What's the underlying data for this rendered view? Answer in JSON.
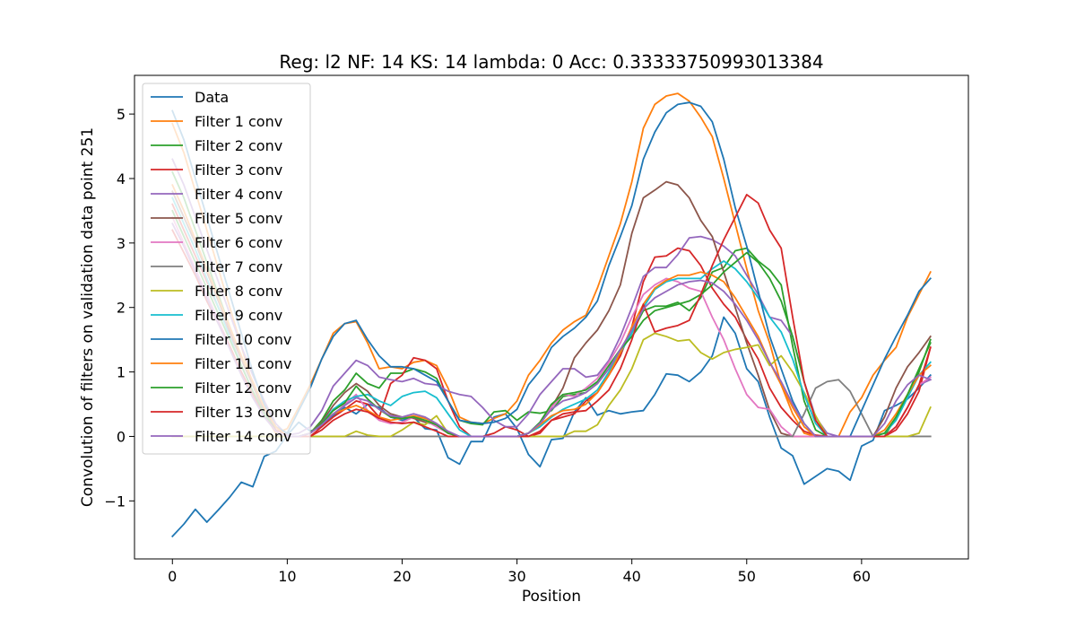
{
  "chart_data": {
    "type": "line",
    "title": "Reg: l2  NF: 14  KS: 14  lambda: 0 Acc: 0.33333750993013384",
    "xlabel": "Position",
    "ylabel": "Convolution of filters on validation data point 251",
    "xlim": [
      -3.3,
      69.3
    ],
    "ylim": [
      -1.9,
      5.6
    ],
    "xticks": [
      0,
      10,
      20,
      30,
      40,
      50,
      60
    ],
    "yticks": [
      -1,
      0,
      1,
      2,
      3,
      4,
      5
    ],
    "ytick_labels": [
      "−1",
      "0",
      "1",
      "2",
      "3",
      "4",
      "5"
    ],
    "legend_position": "upper-left",
    "x_data_start": 0,
    "x_filter_start": 0,
    "series": [
      {
        "name": "Data",
        "color": "#1f77b4",
        "values": [
          -1.55,
          -1.36,
          -1.13,
          -1.33,
          -1.14,
          -0.94,
          -0.71,
          -0.78,
          -0.31,
          -0.23,
          0.02,
          0.22,
          0.08,
          0.15,
          0.32,
          0.45,
          0.35,
          0.5,
          0.45,
          0.3,
          0.25,
          0.3,
          0.12,
          0.1,
          -0.33,
          -0.43,
          -0.08,
          -0.08,
          0.3,
          0.35,
          0.12,
          -0.28,
          -0.47,
          -0.05,
          -0.03,
          0.38,
          0.6,
          0.33,
          0.4,
          0.35,
          0.38,
          0.4,
          0.65,
          0.97,
          0.95,
          0.85,
          1.0,
          1.25,
          1.85,
          1.6,
          1.05,
          0.85,
          0.3,
          -0.18,
          -0.3,
          -0.74,
          -0.62,
          -0.5,
          -0.54,
          -0.68,
          -0.15,
          -0.06,
          0.4,
          0.48,
          0.58,
          0.75,
          0.95
        ]
      },
      {
        "name": "Filter 1 conv",
        "color": "#ff7f0e",
        "values": [
          4.85,
          4.4,
          3.8,
          3.2,
          2.6,
          2.0,
          1.4,
          0.8,
          0.35,
          0.05,
          0.12,
          0.45,
          0.8,
          1.2,
          1.6,
          1.75,
          1.78,
          1.45,
          1.05,
          1.08,
          1.05,
          1.15,
          1.18,
          1.1,
          0.75,
          0.3,
          0.22,
          0.2,
          0.28,
          0.35,
          0.55,
          0.95,
          1.18,
          1.45,
          1.65,
          1.78,
          1.88,
          2.3,
          2.8,
          3.3,
          3.95,
          4.78,
          5.15,
          5.28,
          5.32,
          5.2,
          4.95,
          4.65,
          4.0,
          3.3,
          2.6,
          1.95,
          1.45,
          0.8,
          0.35,
          0.05,
          0.0,
          0.0,
          0.0,
          0.38,
          0.6,
          0.95,
          1.18,
          1.38,
          1.85,
          2.2,
          2.55
        ]
      },
      {
        "name": "Filter 2 conv",
        "color": "#2ca02c",
        "values": [
          4.1,
          3.7,
          3.2,
          2.7,
          2.2,
          1.7,
          1.2,
          0.8,
          0.45,
          0.15,
          0.0,
          0.0,
          0.05,
          0.25,
          0.55,
          0.72,
          0.98,
          0.82,
          0.75,
          0.98,
          0.98,
          1.05,
          1.0,
          0.9,
          0.55,
          0.25,
          0.2,
          0.18,
          0.38,
          0.4,
          0.25,
          0.38,
          0.36,
          0.4,
          0.62,
          0.65,
          0.68,
          0.82,
          1.05,
          1.35,
          1.6,
          1.95,
          2.02,
          2.02,
          2.08,
          1.95,
          2.15,
          2.55,
          2.62,
          2.88,
          2.92,
          2.72,
          2.58,
          2.35,
          1.4,
          0.55,
          0.1,
          0.0,
          0.0,
          0.0,
          0.0,
          0.0,
          0.0,
          0.3,
          0.6,
          1.0,
          1.5
        ]
      },
      {
        "name": "Filter 3 conv",
        "color": "#d62728",
        "values": [
          3.6,
          3.2,
          2.8,
          2.4,
          2.0,
          1.6,
          1.2,
          0.8,
          0.4,
          0.15,
          0.0,
          0.0,
          0.0,
          0.15,
          0.3,
          0.42,
          0.55,
          0.5,
          0.3,
          0.82,
          0.95,
          1.22,
          1.18,
          1.05,
          0.55,
          0.15,
          0.0,
          0.0,
          0.05,
          0.15,
          0.1,
          0.0,
          0.05,
          0.25,
          0.3,
          0.35,
          0.55,
          0.68,
          0.95,
          1.25,
          1.7,
          2.4,
          2.78,
          2.8,
          2.92,
          2.88,
          2.65,
          2.3,
          2.05,
          1.85,
          1.5,
          1.2,
          0.75,
          0.45,
          0.25,
          0.08,
          0.02,
          0.0,
          0.0,
          0.0,
          0.0,
          0.0,
          0.0,
          0.1,
          0.35,
          0.7,
          1.38
        ]
      },
      {
        "name": "Filter 4 conv",
        "color": "#9467bd",
        "values": [
          4.3,
          3.9,
          3.4,
          2.9,
          2.4,
          1.9,
          1.4,
          0.95,
          0.55,
          0.2,
          0.02,
          0.05,
          0.15,
          0.4,
          0.78,
          0.98,
          1.18,
          1.1,
          0.92,
          0.88,
          0.85,
          0.9,
          0.82,
          0.8,
          0.7,
          0.65,
          0.62,
          0.45,
          0.25,
          0.15,
          0.15,
          0.35,
          0.65,
          0.85,
          1.05,
          1.05,
          0.92,
          0.95,
          1.18,
          1.55,
          2.0,
          2.48,
          2.62,
          2.62,
          2.82,
          3.08,
          3.1,
          3.05,
          2.95,
          2.8,
          2.5,
          2.2,
          1.85,
          1.8,
          1.55,
          0.85,
          0.3,
          0.05,
          0.0,
          0.0,
          0.0,
          0.0,
          0.0,
          0.15,
          0.45,
          0.8,
          0.88
        ]
      },
      {
        "name": "Filter 5 conv",
        "color": "#8c564b",
        "values": [
          3.8,
          3.4,
          3.0,
          2.55,
          2.1,
          1.65,
          1.2,
          0.8,
          0.4,
          0.1,
          0.0,
          0.0,
          0.05,
          0.22,
          0.48,
          0.68,
          0.82,
          0.7,
          0.48,
          0.35,
          0.3,
          0.28,
          0.22,
          0.18,
          0.05,
          0.0,
          0.0,
          0.0,
          0.0,
          0.0,
          0.0,
          0.05,
          0.2,
          0.45,
          0.75,
          1.22,
          1.45,
          1.65,
          1.95,
          2.35,
          3.15,
          3.7,
          3.82,
          3.95,
          3.9,
          3.7,
          3.35,
          3.1,
          2.55,
          2.0,
          1.45,
          0.95,
          0.4,
          0.05,
          0.0,
          0.0,
          0.0,
          0.0,
          0.0,
          0.0,
          0.0,
          0.0,
          0.3,
          0.75,
          1.08,
          1.3,
          1.55
        ]
      },
      {
        "name": "Filter 6 conv",
        "color": "#e377c2",
        "values": [
          3.4,
          3.0,
          2.6,
          2.2,
          1.8,
          1.4,
          1.0,
          0.65,
          0.35,
          0.1,
          0.0,
          0.0,
          0.05,
          0.2,
          0.42,
          0.5,
          0.65,
          0.4,
          0.25,
          0.2,
          0.22,
          0.3,
          0.25,
          0.15,
          0.05,
          0.0,
          0.0,
          0.0,
          0.0,
          0.0,
          0.0,
          0.05,
          0.18,
          0.45,
          0.65,
          0.62,
          0.75,
          0.9,
          1.15,
          1.45,
          1.85,
          2.2,
          2.35,
          2.45,
          2.4,
          2.3,
          2.25,
          1.85,
          1.5,
          1.05,
          0.65,
          0.45,
          0.42,
          0.15,
          0.0,
          0.0,
          0.0,
          0.0,
          0.0,
          0.0,
          0.0,
          0.0,
          0.0,
          0.15,
          0.45,
          0.8,
          0.92
        ]
      },
      {
        "name": "Filter 7 conv",
        "color": "#7f7f7f",
        "values": [
          0.0,
          0.0,
          0.0,
          0.0,
          0.0,
          0.0,
          0.0,
          0.0,
          0.0,
          0.0,
          0.0,
          0.0,
          0.0,
          0.0,
          0.0,
          0.0,
          0.0,
          0.0,
          0.0,
          0.0,
          0.0,
          0.0,
          0.0,
          0.0,
          0.0,
          0.0,
          0.0,
          0.0,
          0.0,
          0.0,
          0.0,
          0.0,
          0.0,
          0.0,
          0.0,
          0.0,
          0.0,
          0.0,
          0.0,
          0.0,
          0.0,
          0.0,
          0.0,
          0.0,
          0.0,
          0.0,
          0.0,
          0.0,
          0.0,
          0.0,
          0.0,
          0.0,
          0.0,
          0.0,
          0.0,
          0.35,
          0.75,
          0.85,
          0.88,
          0.7,
          0.35,
          0.0,
          0.0,
          0.0,
          0.0,
          0.0,
          0.0
        ]
      },
      {
        "name": "Filter 8 conv",
        "color": "#bcbd22",
        "values": [
          0.0,
          0.0,
          0.0,
          0.0,
          0.0,
          0.0,
          0.0,
          0.0,
          0.0,
          0.0,
          0.0,
          0.0,
          0.0,
          0.0,
          0.0,
          0.0,
          0.08,
          0.02,
          0.0,
          0.0,
          0.1,
          0.22,
          0.18,
          0.32,
          0.05,
          0.0,
          0.0,
          0.0,
          0.0,
          0.0,
          0.0,
          0.0,
          0.0,
          0.0,
          0.0,
          0.08,
          0.08,
          0.18,
          0.48,
          0.72,
          1.05,
          1.5,
          1.6,
          1.55,
          1.48,
          1.5,
          1.3,
          1.2,
          1.3,
          1.35,
          1.38,
          1.42,
          1.1,
          1.25,
          1.0,
          0.68,
          0.32,
          0.0,
          0.0,
          0.0,
          0.0,
          0.0,
          0.0,
          0.0,
          0.0,
          0.05,
          0.45
        ]
      },
      {
        "name": "Filter 9 conv",
        "color": "#17becf",
        "values": [
          3.7,
          3.3,
          2.9,
          2.45,
          2.0,
          1.55,
          1.1,
          0.7,
          0.35,
          0.1,
          0.0,
          0.0,
          0.05,
          0.2,
          0.42,
          0.55,
          0.62,
          0.65,
          0.55,
          0.48,
          0.62,
          0.68,
          0.7,
          0.6,
          0.35,
          0.1,
          0.0,
          0.0,
          0.0,
          0.0,
          0.0,
          0.05,
          0.15,
          0.3,
          0.42,
          0.5,
          0.58,
          0.72,
          1.0,
          1.3,
          1.6,
          2.0,
          2.28,
          2.4,
          2.45,
          2.45,
          2.45,
          2.6,
          2.72,
          2.6,
          2.4,
          2.15,
          1.85,
          1.62,
          1.2,
          0.65,
          0.2,
          0.0,
          0.0,
          0.0,
          0.0,
          0.0,
          0.05,
          0.25,
          0.6,
          0.95,
          1.15
        ]
      },
      {
        "name": "Filter 10 conv",
        "color": "#1f77b4",
        "values": [
          5.05,
          4.6,
          4.0,
          3.4,
          2.8,
          2.2,
          1.6,
          1.0,
          0.5,
          0.15,
          0.05,
          0.4,
          0.75,
          1.2,
          1.55,
          1.75,
          1.8,
          1.5,
          1.25,
          1.08,
          1.08,
          1.05,
          0.95,
          0.85,
          0.55,
          0.25,
          0.22,
          0.2,
          0.22,
          0.28,
          0.42,
          0.8,
          1.02,
          1.38,
          1.55,
          1.68,
          1.85,
          2.1,
          2.65,
          3.1,
          3.58,
          4.3,
          4.72,
          5.02,
          5.15,
          5.18,
          5.12,
          4.88,
          4.3,
          3.55,
          2.95,
          2.25,
          1.55,
          1.05,
          0.55,
          0.2,
          0.0,
          0.0,
          0.0,
          0.0,
          0.4,
          0.8,
          1.2,
          1.55,
          1.88,
          2.25,
          2.45
        ]
      },
      {
        "name": "Filter 11 conv",
        "color": "#ff7f0e",
        "values": [
          3.9,
          3.5,
          3.05,
          2.6,
          2.15,
          1.7,
          1.25,
          0.85,
          0.45,
          0.15,
          0.0,
          0.0,
          0.05,
          0.2,
          0.35,
          0.42,
          0.48,
          0.4,
          0.3,
          0.25,
          0.28,
          0.32,
          0.28,
          0.2,
          0.05,
          0.0,
          0.0,
          0.0,
          0.0,
          0.0,
          0.0,
          0.05,
          0.18,
          0.32,
          0.4,
          0.42,
          0.5,
          0.68,
          0.95,
          1.3,
          1.7,
          2.05,
          2.3,
          2.42,
          2.5,
          2.5,
          2.55,
          2.5,
          2.4,
          2.15,
          1.85,
          1.55,
          1.15,
          0.8,
          0.45,
          0.15,
          0.0,
          0.0,
          0.0,
          0.0,
          0.0,
          0.0,
          0.1,
          0.35,
          0.65,
          0.95,
          1.1
        ]
      },
      {
        "name": "Filter 12 conv",
        "color": "#2ca02c",
        "values": [
          3.5,
          3.1,
          2.7,
          2.3,
          1.9,
          1.5,
          1.1,
          0.7,
          0.35,
          0.1,
          0.0,
          0.0,
          0.05,
          0.2,
          0.4,
          0.52,
          0.78,
          0.58,
          0.42,
          0.3,
          0.28,
          0.3,
          0.25,
          0.18,
          0.05,
          0.0,
          0.0,
          0.0,
          0.0,
          0.0,
          0.0,
          0.05,
          0.22,
          0.5,
          0.65,
          0.68,
          0.72,
          0.85,
          1.1,
          1.35,
          1.55,
          1.8,
          1.95,
          2.0,
          2.05,
          2.1,
          2.2,
          2.35,
          2.55,
          2.7,
          2.85,
          2.7,
          2.45,
          2.1,
          1.55,
          0.85,
          0.25,
          0.0,
          0.0,
          0.0,
          0.0,
          0.0,
          0.05,
          0.3,
          0.65,
          1.05,
          1.45
        ]
      },
      {
        "name": "Filter 13 conv",
        "color": "#d62728",
        "values": [
          3.2,
          2.85,
          2.5,
          2.1,
          1.75,
          1.4,
          1.0,
          0.65,
          0.3,
          0.1,
          0.0,
          0.0,
          0.0,
          0.1,
          0.25,
          0.35,
          0.42,
          0.38,
          0.28,
          0.22,
          0.2,
          0.22,
          0.15,
          0.08,
          0.0,
          0.0,
          0.0,
          0.0,
          0.0,
          0.0,
          0.0,
          0.0,
          0.08,
          0.25,
          0.35,
          0.38,
          0.4,
          0.55,
          0.72,
          1.05,
          1.5,
          2.05,
          1.62,
          1.68,
          1.72,
          1.8,
          2.2,
          2.65,
          3.05,
          3.4,
          3.75,
          3.62,
          3.2,
          2.92,
          1.85,
          0.85,
          0.25,
          0.0,
          0.0,
          0.0,
          0.0,
          0.0,
          0.0,
          0.15,
          0.45,
          0.8,
          1.38
        ]
      },
      {
        "name": "Filter 14 conv",
        "color": "#9467bd",
        "values": [
          3.3,
          2.95,
          2.55,
          2.15,
          1.75,
          1.35,
          0.95,
          0.6,
          0.3,
          0.08,
          0.0,
          0.0,
          0.05,
          0.18,
          0.35,
          0.48,
          0.6,
          0.55,
          0.42,
          0.32,
          0.3,
          0.35,
          0.3,
          0.2,
          0.08,
          0.0,
          0.0,
          0.0,
          0.0,
          0.0,
          0.0,
          0.05,
          0.2,
          0.42,
          0.55,
          0.6,
          0.68,
          0.82,
          1.05,
          1.35,
          1.65,
          1.98,
          2.15,
          2.25,
          2.35,
          2.4,
          2.42,
          2.38,
          2.25,
          2.05,
          1.8,
          1.5,
          1.15,
          0.85,
          0.5,
          0.2,
          0.0,
          0.0,
          0.0,
          0.0,
          0.0,
          0.0,
          0.2,
          0.55,
          0.8,
          0.95,
          0.88
        ]
      }
    ]
  }
}
